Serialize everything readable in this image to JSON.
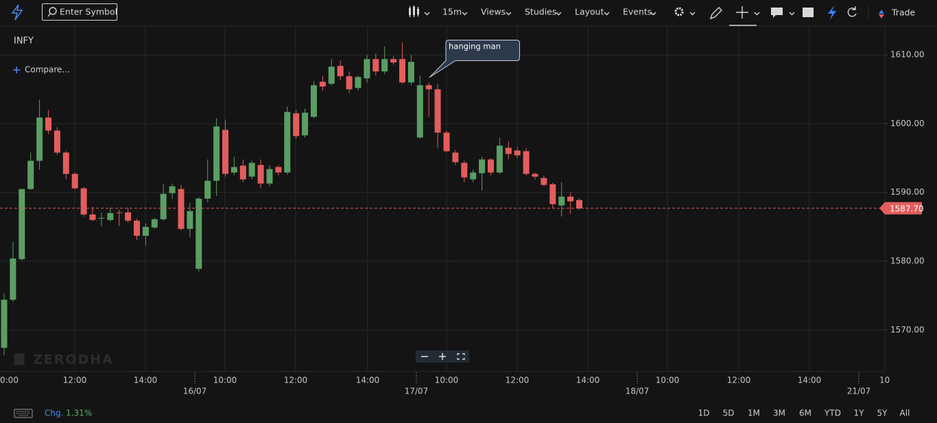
{
  "toolbar": {
    "search_placeholder": "Enter Symbol",
    "interval": "15m",
    "menus": [
      "Views",
      "Studies",
      "Layout",
      "Events"
    ],
    "trade": "Trade"
  },
  "watermark": "ZERODHA",
  "chart_data": {
    "type": "candlestick",
    "title": "INFY",
    "compare": "Compare...",
    "annotation": "hanging man",
    "colors": {
      "up": "#5a9e62",
      "down": "#e35d5d"
    },
    "ylim": [
      1564,
      1614
    ],
    "yticks": [
      {
        "value": 1570,
        "label": "1570.00"
      },
      {
        "value": 1580,
        "label": "1580.00"
      },
      {
        "value": 1590,
        "label": "1590.00"
      },
      {
        "value": 1600,
        "label": "1600.00"
      },
      {
        "value": 1610,
        "label": "1610.00"
      }
    ],
    "last_price": {
      "value": 1587.7,
      "label": "1587.70"
    },
    "x_labels": [
      "0:00",
      "12:00",
      "14:00",
      "16/07",
      "10:00",
      "12:00",
      "14:00",
      "17/07",
      "10:00",
      "12:00",
      "14:00",
      "18/07",
      "10:00",
      "12:00",
      "14:00",
      "21/07",
      "10"
    ],
    "open": [
      1567.4,
      1574.4,
      1580.3,
      1590.5,
      1594.6,
      1600.9,
      1599.0,
      1595.8,
      1592.7,
      1590.6,
      1586.8,
      1586.2,
      1586.0,
      1587.1,
      1587.1,
      1585.9,
      1583.7,
      1584.9,
      1586.1,
      1589.9,
      1590.5,
      1584.7,
      1578.9,
      1589.1,
      1591.7,
      1599.1,
      1592.9,
      1593.9,
      1592.3,
      1594.0,
      1591.3,
      1593.7,
      1592.9,
      1601.5,
      1598.3,
      1601.0,
      1606.1,
      1605.8,
      1608.4,
      1606.9,
      1605.2,
      1606.6,
      1609.4,
      1607.6,
      1609.4,
      1609.4,
      1606.0,
      1598.0,
      1605.6,
      1605.0,
      1598.7,
      1595.8,
      1594.3,
      1591.9,
      1592.8,
      1594.8,
      1592.9,
      1596.5,
      1596.1,
      1596.0,
      1592.7,
      1592.1,
      1591.2,
      1588.1,
      1589.4,
      1588.9
    ],
    "high": [
      1575.3,
      1582.8,
      1590.5,
      1595.8,
      1603.5,
      1602.0,
      1599.5,
      1596.0,
      1592.9,
      1590.8,
      1587.9,
      1587.1,
      1587.8,
      1587.5,
      1587.7,
      1586.2,
      1585.5,
      1586.3,
      1591.3,
      1591.3,
      1591.1,
      1588.5,
      1589.3,
      1594.8,
      1600.8,
      1600.6,
      1595.2,
      1594.8,
      1594.6,
      1594.8,
      1594.0,
      1594.0,
      1602.5,
      1602.0,
      1602.2,
      1606.2,
      1607.0,
      1609.4,
      1609.2,
      1607.6,
      1607.0,
      1610.0,
      1610.2,
      1611.2,
      1609.8,
      1611.8,
      1610.0,
      1607.0,
      1606.0,
      1605.8,
      1599.0,
      1596.2,
      1594.6,
      1593.3,
      1595.2,
      1595.0,
      1598.0,
      1597.4,
      1596.6,
      1596.4,
      1592.9,
      1592.5,
      1591.4,
      1591.5,
      1590.0,
      1589.1
    ],
    "low": [
      1566.3,
      1574.1,
      1580.1,
      1590.4,
      1593.3,
      1598.5,
      1595.5,
      1591.9,
      1590.4,
      1586.5,
      1585.8,
      1585.1,
      1585.8,
      1585.1,
      1585.6,
      1583.1,
      1582.3,
      1584.7,
      1585.9,
      1589.1,
      1584.5,
      1583.5,
      1578.5,
      1588.6,
      1589.5,
      1592.3,
      1592.5,
      1591.5,
      1591.9,
      1590.6,
      1590.9,
      1592.5,
      1592.6,
      1597.8,
      1598.0,
      1600.8,
      1604.8,
      1605.6,
      1606.3,
      1604.4,
      1604.8,
      1606.0,
      1607.0,
      1607.2,
      1608.6,
      1605.8,
      1605.6,
      1597.8,
      1601.0,
      1596.4,
      1595.8,
      1594.0,
      1591.5,
      1591.5,
      1590.3,
      1592.5,
      1592.7,
      1594.8,
      1595.0,
      1592.5,
      1591.9,
      1590.9,
      1587.7,
      1586.5,
      1586.9,
      1587.5
    ],
    "close": [
      1574.4,
      1580.4,
      1590.5,
      1594.6,
      1600.9,
      1599.0,
      1595.8,
      1592.7,
      1590.6,
      1586.8,
      1586.0,
      1586.3,
      1587.0,
      1587.0,
      1585.9,
      1583.7,
      1585.0,
      1586.1,
      1589.8,
      1590.9,
      1584.7,
      1587.3,
      1589.1,
      1591.7,
      1599.6,
      1592.7,
      1593.7,
      1591.9,
      1594.3,
      1591.3,
      1593.4,
      1592.9,
      1601.7,
      1598.2,
      1601.6,
      1605.6,
      1605.4,
      1608.3,
      1606.9,
      1605.0,
      1606.8,
      1609.4,
      1607.6,
      1609.4,
      1608.9,
      1606.0,
      1609.0,
      1605.6,
      1605.0,
      1598.7,
      1596.0,
      1594.4,
      1592.2,
      1592.9,
      1594.8,
      1592.9,
      1596.8,
      1595.6,
      1595.4,
      1592.7,
      1592.3,
      1591.1,
      1588.3,
      1589.4,
      1588.7,
      1587.7
    ]
  },
  "footer": {
    "change_label": "Chg.",
    "change_value": "1.31%",
    "ranges": [
      "1D",
      "5D",
      "1M",
      "3M",
      "6M",
      "YTD",
      "1Y",
      "5Y",
      "All"
    ]
  }
}
